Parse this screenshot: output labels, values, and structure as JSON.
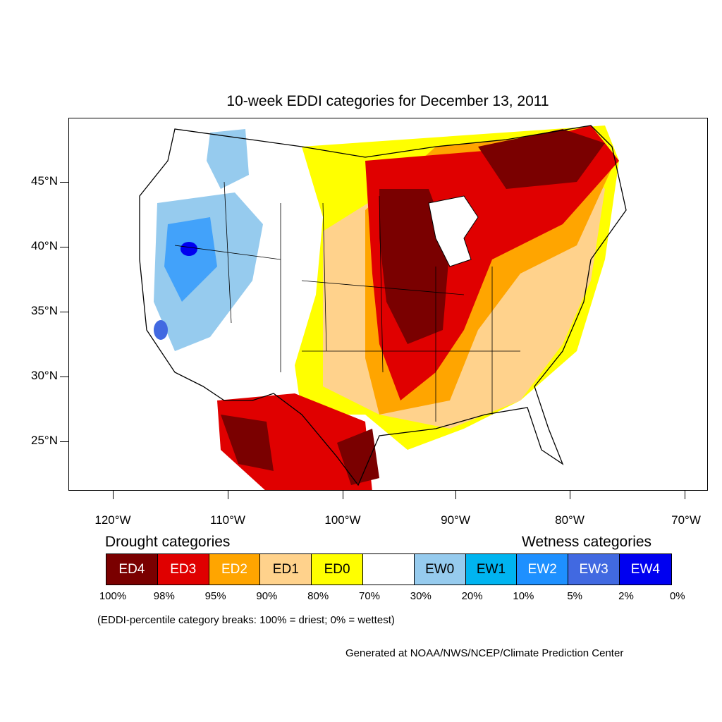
{
  "title": "10-week EDDI categories for December 13, 2011",
  "lat_labels": [
    "45°N",
    "40°N",
    "35°N",
    "30°N",
    "25°N"
  ],
  "lon_labels": [
    "120°W",
    "110°W",
    "100°W",
    "90°W",
    "80°W",
    "70°W"
  ],
  "legend": {
    "drought_heading": "Drought categories",
    "wetness_heading": "Wetness categories",
    "categories": [
      {
        "label": "ED4",
        "color": "#7a0000",
        "text_color": "#ffffff"
      },
      {
        "label": "ED3",
        "color": "#e00000",
        "text_color": "#ffffff"
      },
      {
        "label": "ED2",
        "color": "#ffa500",
        "text_color": "#ffffff"
      },
      {
        "label": "ED1",
        "color": "#ffd28c",
        "text_color": "#000000"
      },
      {
        "label": "ED0",
        "color": "#ffff00",
        "text_color": "#000000"
      },
      {
        "label": "",
        "color": "#ffffff",
        "text_color": "#000000"
      },
      {
        "label": "EW0",
        "color": "#96cbee",
        "text_color": "#000000"
      },
      {
        "label": "EW1",
        "color": "#00b4f0",
        "text_color": "#000000"
      },
      {
        "label": "EW2",
        "color": "#1e90ff",
        "text_color": "#ffffff"
      },
      {
        "label": "EW3",
        "color": "#4169e1",
        "text_color": "#ffffff"
      },
      {
        "label": "EW4",
        "color": "#0000f0",
        "text_color": "#ffffff"
      }
    ],
    "breaks": [
      "100%",
      "98%",
      "95%",
      "90%",
      "80%",
      "70%",
      "30%",
      "20%",
      "10%",
      "5%",
      "2%",
      "0%"
    ]
  },
  "note": "(EDDI-percentile category breaks: 100% = driest; 0% = wettest)",
  "credit": "Generated at NOAA/NWS/NCEP/Climate Prediction Center"
}
